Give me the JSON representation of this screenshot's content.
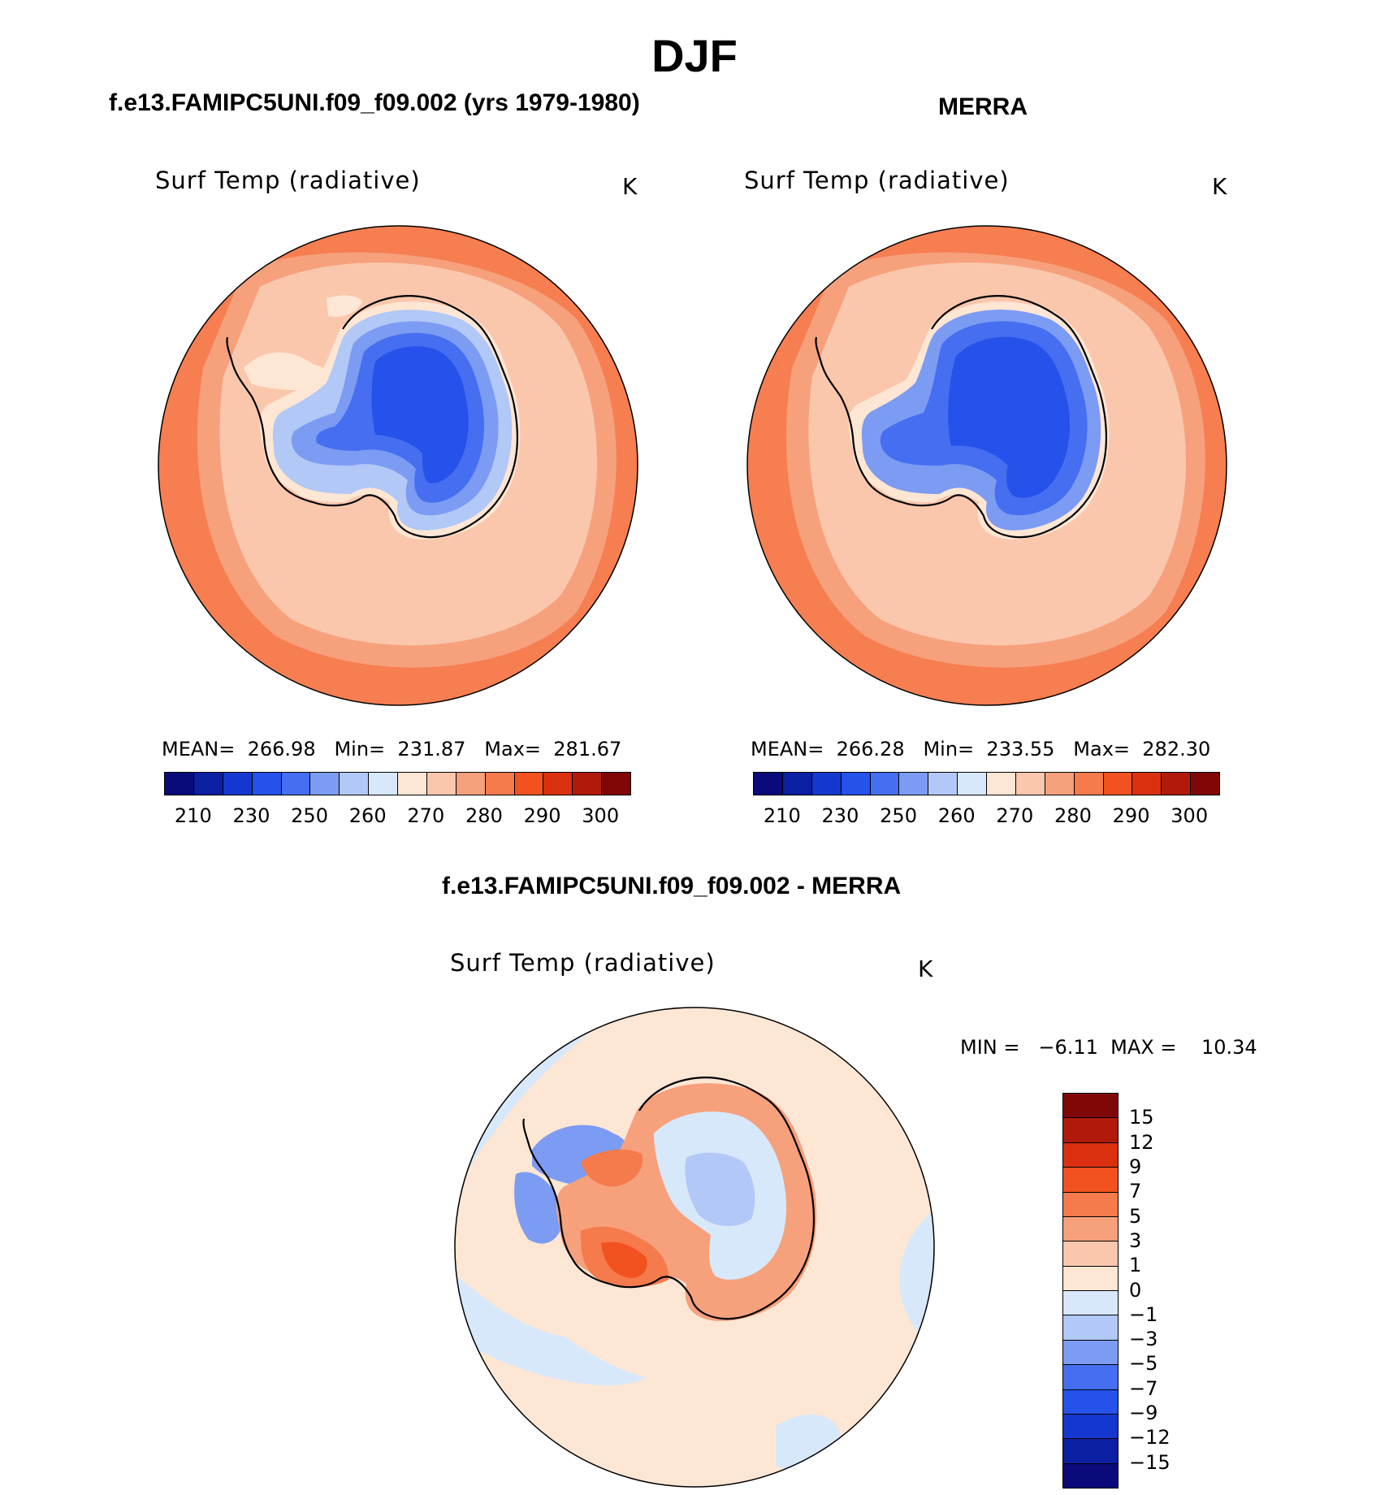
{
  "title": "DJF",
  "panels": [
    {
      "case_title": "f.e13.FAMIPC5UNI.f09_f09.002 (yrs 1979-1980)",
      "variable": "Surf Temp (radiative)",
      "units": "K",
      "stats": "MEAN=  266.98   Min=  231.87   Max=  281.67",
      "mean": 266.98,
      "min": 231.87,
      "max": 281.67
    },
    {
      "case_title": "MERRA",
      "variable": "Surf Temp (radiative)",
      "units": "K",
      "stats": "MEAN=  266.28   Min=  233.55   Max=  282.30",
      "mean": 266.28,
      "min": 233.55,
      "max": 282.3
    }
  ],
  "diff_panel": {
    "case_title": "f.e13.FAMIPC5UNI.f09_f09.002 - MERRA",
    "variable": "Surf Temp (radiative)",
    "units": "K",
    "minmax": "MIN =   −6.11  MAX =    10.34",
    "min": -6.11,
    "max": 10.34
  },
  "abs_colorbar": {
    "colors": [
      "#0a0a7a",
      "#0b1fa3",
      "#1438cf",
      "#2452ea",
      "#456ff0",
      "#7c9bf3",
      "#b2c8f6",
      "#d8e8fb",
      "#fde6d4",
      "#fac7ad",
      "#f7a07c",
      "#f57a4c",
      "#f2521f",
      "#da3010",
      "#b11a0a",
      "#7f0707"
    ],
    "tick_labels": [
      "210",
      "230",
      "250",
      "260",
      "270",
      "280",
      "290",
      "300"
    ]
  },
  "diff_colorbar": {
    "colors_top_to_bottom": [
      "#7f0707",
      "#b11a0a",
      "#da3010",
      "#f2521f",
      "#f57a4c",
      "#f7a07c",
      "#fac7ad",
      "#fde6d4",
      "#d8e8fb",
      "#b2c8f6",
      "#7c9bf3",
      "#456ff0",
      "#2452ea",
      "#1438cf",
      "#0b1fa3",
      "#0a0a7a"
    ],
    "tick_labels": [
      "15",
      "12",
      "9",
      "7",
      "5",
      "3",
      "1",
      "0",
      "−1",
      "−3",
      "−5",
      "−7",
      "−9",
      "−12",
      "−15"
    ]
  }
}
